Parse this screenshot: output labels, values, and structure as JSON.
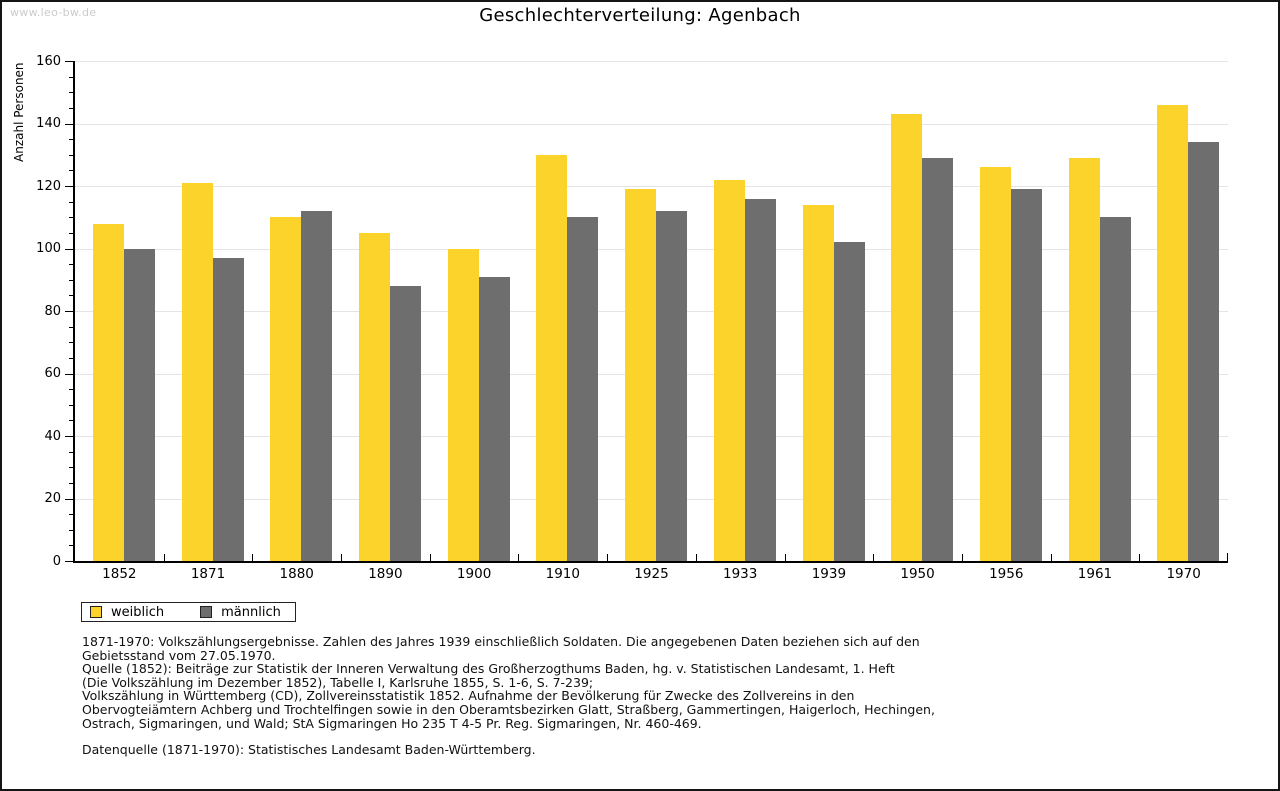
{
  "watermark": "www.leo-bw.de",
  "title": "Geschlechterverteilung: Agenbach",
  "colors": {
    "female": "#FCD32B",
    "male": "#6E6E6E",
    "gridline": "#E4E4E4",
    "axis": "#000000",
    "watermark": "#CBCBCB"
  },
  "chart_data": {
    "type": "bar",
    "title": "Geschlechterverteilung: Agenbach",
    "xlabel": "",
    "ylabel": "Anzahl Personen",
    "ylim": [
      0,
      160
    ],
    "ytick_step": 20,
    "ytick_minor_step": 5,
    "grid": true,
    "legend_position": "bottom-left",
    "categories": [
      "1852",
      "1871",
      "1880",
      "1890",
      "1900",
      "1910",
      "1925",
      "1933",
      "1939",
      "1950",
      "1956",
      "1961",
      "1970"
    ],
    "series": [
      {
        "name": "weiblich",
        "color": "#FCD32B",
        "values": [
          108,
          121,
          110,
          105,
          100,
          130,
          119,
          122,
          114,
          143,
          126,
          129,
          146
        ]
      },
      {
        "name": "männlich",
        "color": "#6E6E6E",
        "values": [
          100,
          97,
          112,
          88,
          91,
          110,
          112,
          116,
          102,
          129,
          119,
          110,
          134
        ]
      }
    ]
  },
  "footnotes": {
    "lines": [
      "1871-1970: Volkszählungsergebnisse. Zahlen des Jahres 1939 einschließlich Soldaten. Die angegebenen Daten beziehen sich auf den",
      "Gebietsstand vom 27.05.1970.",
      "Quelle (1852): Beiträge zur Statistik der Inneren Verwaltung des Großherzogthums Baden, hg. v. Statistischen Landesamt, 1. Heft",
      "(Die Volkszählung im Dezember 1852), Tabelle I, Karlsruhe 1855, S. 1-6, S. 7-239;",
      "Volkszählung in Württemberg (CD), Zollvereinsstatistik 1852. Aufnahme der Bevölkerung für Zwecke des Zollvereins in den",
      "Obervogteiämtern Achberg und Trochtelfingen sowie in den Oberamtsbezirken Glatt, Straßberg, Gammertingen, Haigerloch, Hechingen,",
      "Ostrach, Sigmaringen, und Wald; StA Sigmaringen Ho 235 T 4-5 Pr. Reg. Sigmaringen, Nr. 460-469."
    ],
    "datasource": "Datenquelle (1871-1970): Statistisches Landesamt Baden-Württemberg."
  }
}
